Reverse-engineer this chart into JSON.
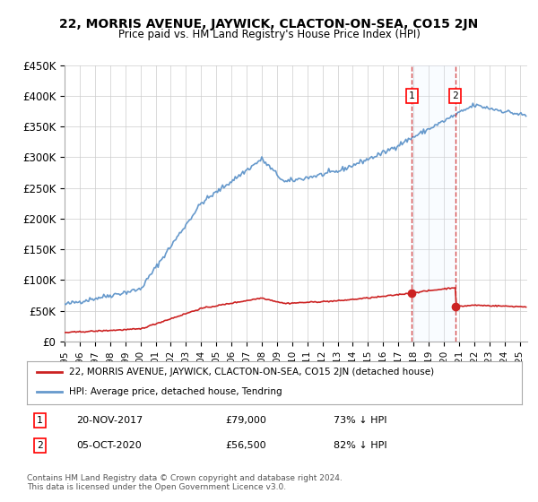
{
  "title": "22, MORRIS AVENUE, JAYWICK, CLACTON-ON-SEA, CO15 2JN",
  "subtitle": "Price paid vs. HM Land Registry's House Price Index (HPI)",
  "hpi_color": "#6699cc",
  "property_color": "#cc2222",
  "marker_color": "#cc2222",
  "vline_color": "#cc2222",
  "background_color": "#ffffff",
  "grid_color": "#cccccc",
  "highlight_bg": "#ddeeff",
  "ylim": [
    0,
    450000
  ],
  "yticks": [
    0,
    50000,
    100000,
    150000,
    200000,
    250000,
    300000,
    350000,
    400000,
    450000
  ],
  "ytick_labels": [
    "£0",
    "£50K",
    "£100K",
    "£150K",
    "£200K",
    "£250K",
    "£300K",
    "£350K",
    "£400K",
    "£450K"
  ],
  "xlim_start": 1995.0,
  "xlim_end": 2025.5,
  "sale1_x": 2017.896,
  "sale1_y": 79000,
  "sale1_label": "1",
  "sale1_date": "20-NOV-2017",
  "sale1_price": "£79,000",
  "sale1_hpi": "73% ↓ HPI",
  "sale2_x": 2020.756,
  "sale2_y": 56500,
  "sale2_label": "2",
  "sale2_date": "05-OCT-2020",
  "sale2_price": "£56,500",
  "sale2_hpi": "82% ↓ HPI",
  "legend_line1": "22, MORRIS AVENUE, JAYWICK, CLACTON-ON-SEA, CO15 2JN (detached house)",
  "legend_line2": "HPI: Average price, detached house, Tendring",
  "footer1": "Contains HM Land Registry data © Crown copyright and database right 2024.",
  "footer2": "This data is licensed under the Open Government Licence v3.0."
}
